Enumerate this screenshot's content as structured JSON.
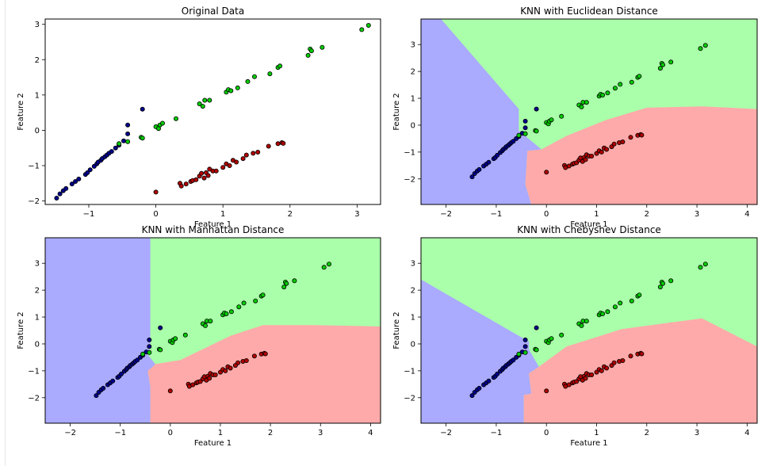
{
  "colors": {
    "class_blue": "#00008b",
    "class_green": "#00cc00",
    "class_red": "#b00000",
    "region_blue": "#aaaaff",
    "region_green": "#aaffaa",
    "region_red": "#ffaaaa"
  },
  "chart_data": [
    {
      "type": "scatter",
      "title": "Original Data",
      "xlabel": "Feature 1",
      "ylabel": "Feature 2",
      "xlim": [
        -1.65,
        3.35
      ],
      "ylim": [
        -2.1,
        3.15
      ],
      "xticks": [
        -1,
        0,
        1,
        2,
        3
      ],
      "yticks": [
        -2,
        -1,
        0,
        1,
        2,
        3
      ],
      "grid": false,
      "decision_regions": false,
      "points_ref": "points"
    },
    {
      "type": "scatter",
      "title": "KNN with Euclidean Distance",
      "xlabel": "Feature 1",
      "ylabel": "Feature 2",
      "xlim": [
        -2.5,
        4.2
      ],
      "ylim": [
        -2.95,
        3.95
      ],
      "xticks": [
        -2,
        -1,
        0,
        1,
        2,
        3,
        4
      ],
      "yticks": [
        -2,
        -1,
        0,
        1,
        2,
        3
      ],
      "grid": false,
      "decision_regions": true,
      "regions": {
        "blue": [
          [
            -2.5,
            -2.95
          ],
          [
            -0.3,
            -2.95
          ],
          [
            -0.42,
            -2.2
          ],
          [
            -0.38,
            -0.95
          ],
          [
            -0.1,
            -0.9
          ],
          [
            -0.55,
            -0.2
          ],
          [
            -0.55,
            0.6
          ],
          [
            -2.1,
            3.95
          ],
          [
            -2.5,
            3.95
          ]
        ],
        "red": [
          [
            -0.3,
            -2.95
          ],
          [
            4.2,
            -2.95
          ],
          [
            4.2,
            0.6
          ],
          [
            3.1,
            0.7
          ],
          [
            2.0,
            0.65
          ],
          [
            1.2,
            0.2
          ],
          [
            0.4,
            -0.4
          ],
          [
            -0.1,
            -0.9
          ],
          [
            -0.38,
            -0.95
          ],
          [
            -0.42,
            -2.2
          ]
        ]
      },
      "points_ref": "points"
    },
    {
      "type": "scatter",
      "title": "KNN with Manhattan Distance",
      "xlabel": "Feature 1",
      "ylabel": "Feature 2",
      "xlim": [
        -2.5,
        4.2
      ],
      "ylim": [
        -2.95,
        3.95
      ],
      "xticks": [
        -2,
        -1,
        0,
        1,
        2,
        3,
        4
      ],
      "yticks": [
        -2,
        -1,
        0,
        1,
        2,
        3
      ],
      "grid": false,
      "decision_regions": true,
      "regions": {
        "blue": [
          [
            -2.5,
            -2.95
          ],
          [
            -0.4,
            -2.95
          ],
          [
            -0.4,
            -1.6
          ],
          [
            -0.45,
            -1.0
          ],
          [
            -0.35,
            -0.85
          ],
          [
            -0.3,
            -0.75
          ],
          [
            -0.45,
            -0.4
          ],
          [
            -0.4,
            0.0
          ],
          [
            -0.4,
            3.95
          ],
          [
            -2.5,
            3.95
          ]
        ],
        "red": [
          [
            -0.4,
            -2.95
          ],
          [
            4.2,
            -2.95
          ],
          [
            4.2,
            0.65
          ],
          [
            2.9,
            0.7
          ],
          [
            1.85,
            0.7
          ],
          [
            1.2,
            0.3
          ],
          [
            0.2,
            -0.6
          ],
          [
            -0.3,
            -0.75
          ],
          [
            -0.35,
            -0.85
          ],
          [
            -0.45,
            -1.0
          ],
          [
            -0.4,
            -1.6
          ]
        ]
      },
      "points_ref": "points"
    },
    {
      "type": "scatter",
      "title": "KNN with Chebyshev Distance",
      "xlabel": "Feature 1",
      "ylabel": "Feature 2",
      "xlim": [
        -2.5,
        4.2
      ],
      "ylim": [
        -2.95,
        3.95
      ],
      "xticks": [
        -2,
        -1,
        0,
        1,
        2,
        3,
        4
      ],
      "yticks": [
        -2,
        -1,
        0,
        1,
        2,
        3
      ],
      "grid": false,
      "decision_regions": true,
      "regions": {
        "blue": [
          [
            -2.5,
            -2.95
          ],
          [
            -0.45,
            -2.95
          ],
          [
            -0.45,
            -1.9
          ],
          [
            -0.3,
            -1.85
          ],
          [
            -0.35,
            -1.1
          ],
          [
            -0.15,
            -0.85
          ],
          [
            -0.35,
            -0.2
          ],
          [
            -0.35,
            0.1
          ],
          [
            -0.55,
            0.3
          ],
          [
            -2.5,
            2.4
          ]
        ],
        "red": [
          [
            -0.45,
            -2.95
          ],
          [
            4.2,
            -2.95
          ],
          [
            4.2,
            -0.1
          ],
          [
            3.1,
            0.95
          ],
          [
            2.5,
            0.8
          ],
          [
            1.5,
            0.55
          ],
          [
            0.4,
            -0.1
          ],
          [
            -0.15,
            -0.85
          ],
          [
            -0.35,
            -1.1
          ],
          [
            -0.3,
            -1.85
          ],
          [
            -0.45,
            -1.9
          ]
        ]
      },
      "points_ref": "points"
    }
  ],
  "points": {
    "blue": [
      [
        -1.48,
        -1.92
      ],
      [
        -1.43,
        -1.8
      ],
      [
        -1.38,
        -1.71
      ],
      [
        -1.34,
        -1.65
      ],
      [
        -1.25,
        -1.52
      ],
      [
        -1.2,
        -1.45
      ],
      [
        -1.15,
        -1.38
      ],
      [
        -1.05,
        -1.25
      ],
      [
        -1.02,
        -1.2
      ],
      [
        -0.98,
        -1.12
      ],
      [
        -0.92,
        -1.02
      ],
      [
        -0.88,
        -0.95
      ],
      [
        -0.86,
        -0.9
      ],
      [
        -0.82,
        -0.85
      ],
      [
        -0.8,
        -0.8
      ],
      [
        -0.76,
        -0.75
      ],
      [
        -0.73,
        -0.7
      ],
      [
        -0.7,
        -0.65
      ],
      [
        -0.66,
        -0.6
      ],
      [
        -0.6,
        -0.5
      ],
      [
        -0.55,
        -0.42
      ],
      [
        -0.48,
        -0.3
      ],
      [
        -0.42,
        -0.1
      ],
      [
        -0.2,
        0.6
      ],
      [
        -0.42,
        0.15
      ]
    ],
    "green": [
      [
        -0.55,
        -0.38
      ],
      [
        -0.42,
        -0.32
      ],
      [
        -0.22,
        -0.2
      ],
      [
        -0.2,
        -0.22
      ],
      [
        0.0,
        0.1
      ],
      [
        0.04,
        0.05
      ],
      [
        0.06,
        0.15
      ],
      [
        0.1,
        0.2
      ],
      [
        0.3,
        0.33
      ],
      [
        0.65,
        0.75
      ],
      [
        0.7,
        0.68
      ],
      [
        0.73,
        0.85
      ],
      [
        0.8,
        0.85
      ],
      [
        1.05,
        1.08
      ],
      [
        1.08,
        1.15
      ],
      [
        1.12,
        1.12
      ],
      [
        1.22,
        1.2
      ],
      [
        1.37,
        1.38
      ],
      [
        1.47,
        1.52
      ],
      [
        1.7,
        1.6
      ],
      [
        1.82,
        1.78
      ],
      [
        1.85,
        1.82
      ],
      [
        2.27,
        2.12
      ],
      [
        2.3,
        2.3
      ],
      [
        2.32,
        2.25
      ],
      [
        2.48,
        2.35
      ],
      [
        3.07,
        2.85
      ],
      [
        3.17,
        2.97
      ]
    ],
    "red": [
      [
        0.0,
        -1.75
      ],
      [
        0.36,
        -1.5
      ],
      [
        0.38,
        -1.58
      ],
      [
        0.45,
        -1.52
      ],
      [
        0.52,
        -1.45
      ],
      [
        0.55,
        -1.42
      ],
      [
        0.6,
        -1.4
      ],
      [
        0.65,
        -1.3
      ],
      [
        0.68,
        -1.22
      ],
      [
        0.72,
        -1.35
      ],
      [
        0.75,
        -1.2
      ],
      [
        0.78,
        -1.28
      ],
      [
        0.8,
        -1.1
      ],
      [
        0.85,
        -1.15
      ],
      [
        0.9,
        -1.15
      ],
      [
        1.0,
        -1.05
      ],
      [
        1.05,
        -0.95
      ],
      [
        1.1,
        -1.0
      ],
      [
        1.15,
        -0.85
      ],
      [
        1.2,
        -0.9
      ],
      [
        1.3,
        -0.8
      ],
      [
        1.35,
        -0.7
      ],
      [
        1.45,
        -0.65
      ],
      [
        1.52,
        -0.62
      ],
      [
        1.68,
        -0.45
      ],
      [
        1.82,
        -0.38
      ],
      [
        1.88,
        -0.35
      ],
      [
        1.9,
        -0.37
      ]
    ]
  }
}
